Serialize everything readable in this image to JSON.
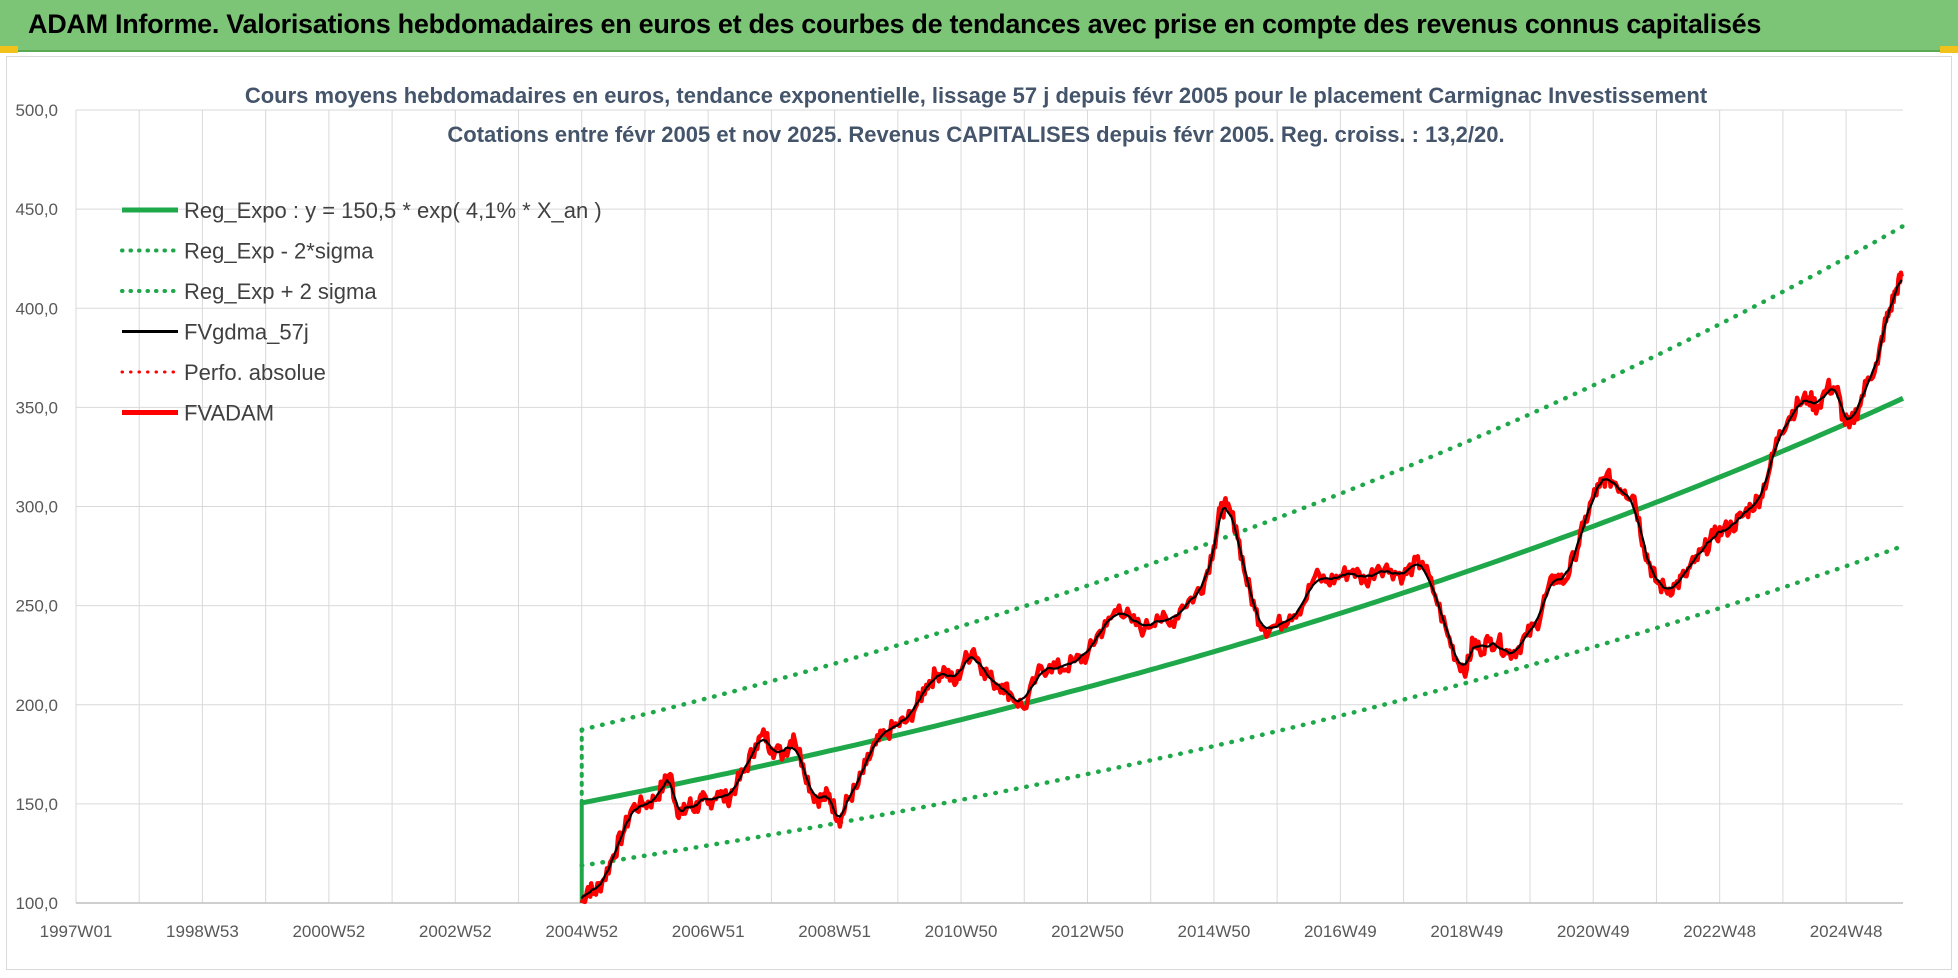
{
  "header": {
    "title": "ADAM Informe. Valorisations hebdomadaires en euros et des courbes de tendances avec prise en compte des revenus connus capitalisés"
  },
  "colors": {
    "banner": "#7cc576",
    "trend": "#1ea84a",
    "price": "#ff0000",
    "smooth": "#000000",
    "grid": "#d9d9d9"
  },
  "chart_data": {
    "type": "line",
    "title": "Cours moyens hebdomadaires en euros, tendance exponentielle, lissage 57 j depuis févr 2005 pour le placement Carmignac Investissement",
    "subtitle": "Cotations entre févr 2005 et nov 2025. Revenus CAPITALISES depuis févr 2005. Reg. croiss. : 13,2/20.",
    "xlabel": "",
    "ylabel": "",
    "ylim": [
      100,
      500
    ],
    "xlim": [
      1997.0,
      2025.9
    ],
    "grid": true,
    "legend_position": "top-left",
    "y_ticks": [
      "100,0",
      "150,0",
      "200,0",
      "250,0",
      "300,0",
      "350,0",
      "400,0",
      "450,0",
      "500,0"
    ],
    "x_ticks": [
      {
        "label": "1997W01",
        "x": 1997.0
      },
      {
        "label": "1998W53",
        "x": 1999.0
      },
      {
        "label": "2000W52",
        "x": 2001.0
      },
      {
        "label": "2002W52",
        "x": 2003.0
      },
      {
        "label": "2004W52",
        "x": 2005.0
      },
      {
        "label": "2006W51",
        "x": 2007.0
      },
      {
        "label": "2008W51",
        "x": 2009.0
      },
      {
        "label": "2010W50",
        "x": 2011.0
      },
      {
        "label": "2012W50",
        "x": 2013.0
      },
      {
        "label": "2014W50",
        "x": 2015.0
      },
      {
        "label": "2016W49",
        "x": 2017.0
      },
      {
        "label": "2018W49",
        "x": 2019.0
      },
      {
        "label": "2020W49",
        "x": 2021.0
      },
      {
        "label": "2022W48",
        "x": 2023.0
      },
      {
        "label": "2024W48",
        "x": 2025.0
      }
    ],
    "legend": [
      {
        "label": "Reg_Expo : y = 150,5 * exp( 4,1% *  X_an )",
        "style": "solid",
        "color": "#1ea84a",
        "width": 5
      },
      {
        "label": "Reg_Exp - 2*sigma",
        "style": "dotted",
        "color": "#1ea84a",
        "width": 4
      },
      {
        "label": "Reg_Exp + 2 sigma",
        "style": "dotted",
        "color": "#1ea84a",
        "width": 4
      },
      {
        "label": "FVgdma_57j",
        "style": "solid",
        "color": "#000000",
        "width": 3
      },
      {
        "label": "Perfo. absolue",
        "style": "dotted",
        "color": "#ff0000",
        "width": 3
      },
      {
        "label": "FVADAM",
        "style": "solid",
        "color": "#ff0000",
        "width": 5
      }
    ],
    "trend": {
      "start": 2005.0,
      "end": 2025.9,
      "base": 150.5,
      "rate": 0.041,
      "minus2sigma_factor": 0.79,
      "plus2sigma_factor": 1.245
    },
    "series": [
      {
        "name": "FVADAM",
        "x": [
          2005.0,
          2005.1,
          2005.2,
          2005.35,
          2005.5,
          2005.65,
          2005.8,
          2006.0,
          2006.15,
          2006.3,
          2006.4,
          2006.5,
          2006.6,
          2006.7,
          2006.8,
          2006.9,
          2007.0,
          2007.15,
          2007.3,
          2007.45,
          2007.6,
          2007.75,
          2007.9,
          2008.0,
          2008.2,
          2008.35,
          2008.5,
          2008.65,
          2008.8,
          2008.9,
          2009.0,
          2009.1,
          2009.2,
          2009.35,
          2009.5,
          2009.65,
          2009.8,
          2010.0,
          2010.15,
          2010.3,
          2010.45,
          2010.6,
          2010.75,
          2010.9,
          2011.05,
          2011.2,
          2011.35,
          2011.5,
          2011.65,
          2011.8,
          2012.0,
          2012.2,
          2012.4,
          2012.6,
          2012.8,
          2013.0,
          2013.15,
          2013.3,
          2013.5,
          2013.7,
          2013.9,
          2014.1,
          2014.3,
          2014.5,
          2014.7,
          2014.85,
          2015.0,
          2015.1,
          2015.2,
          2015.35,
          2015.5,
          2015.65,
          2015.8,
          2016.0,
          2016.2,
          2016.4,
          2016.6,
          2016.8,
          2017.0,
          2017.2,
          2017.4,
          2017.6,
          2017.8,
          2018.0,
          2018.15,
          2018.3,
          2018.5,
          2018.7,
          2018.85,
          2019.0,
          2019.1,
          2019.2,
          2019.35,
          2019.5,
          2019.65,
          2019.8,
          2019.95,
          2020.1,
          2020.25,
          2020.4,
          2020.55,
          2020.7,
          2020.85,
          2021.0,
          2021.1,
          2021.2,
          2021.35,
          2021.5,
          2021.65,
          2021.8,
          2021.9,
          2022.0,
          2022.15,
          2022.3,
          2022.45,
          2022.6,
          2022.75,
          2022.9,
          2023.05,
          2023.2,
          2023.35,
          2023.5,
          2023.65,
          2023.8,
          2023.95,
          2024.1,
          2024.25,
          2024.4,
          2024.55,
          2024.7,
          2024.85,
          2024.95,
          2025.05,
          2025.2,
          2025.35,
          2025.5,
          2025.6,
          2025.7,
          2025.8,
          2025.88
        ],
        "values": [
          100,
          108,
          105,
          112,
          124,
          135,
          148,
          150,
          152,
          160,
          165,
          148,
          145,
          150,
          148,
          152,
          150,
          156,
          152,
          160,
          168,
          180,
          185,
          178,
          175,
          185,
          170,
          155,
          152,
          155,
          147,
          142,
          152,
          158,
          170,
          180,
          185,
          190,
          192,
          200,
          210,
          215,
          218,
          210,
          222,
          228,
          218,
          212,
          210,
          205,
          198,
          215,
          220,
          218,
          222,
          225,
          235,
          240,
          250,
          242,
          238,
          245,
          240,
          250,
          255,
          262,
          280,
          298,
          300,
          290,
          265,
          248,
          238,
          240,
          245,
          250,
          265,
          262,
          265,
          268,
          262,
          270,
          268,
          265,
          270,
          272,
          255,
          235,
          222,
          218,
          232,
          228,
          232,
          232,
          226,
          228,
          235,
          240,
          255,
          265,
          262,
          275,
          290,
          305,
          310,
          315,
          312,
          308,
          305,
          280,
          270,
          262,
          258,
          260,
          265,
          272,
          278,
          285,
          288,
          290,
          295,
          300,
          305,
          320,
          338,
          345,
          352,
          355,
          350,
          360,
          360,
          345,
          340,
          350,
          365,
          372,
          390,
          400,
          410,
          416
        ]
      }
    ]
  }
}
